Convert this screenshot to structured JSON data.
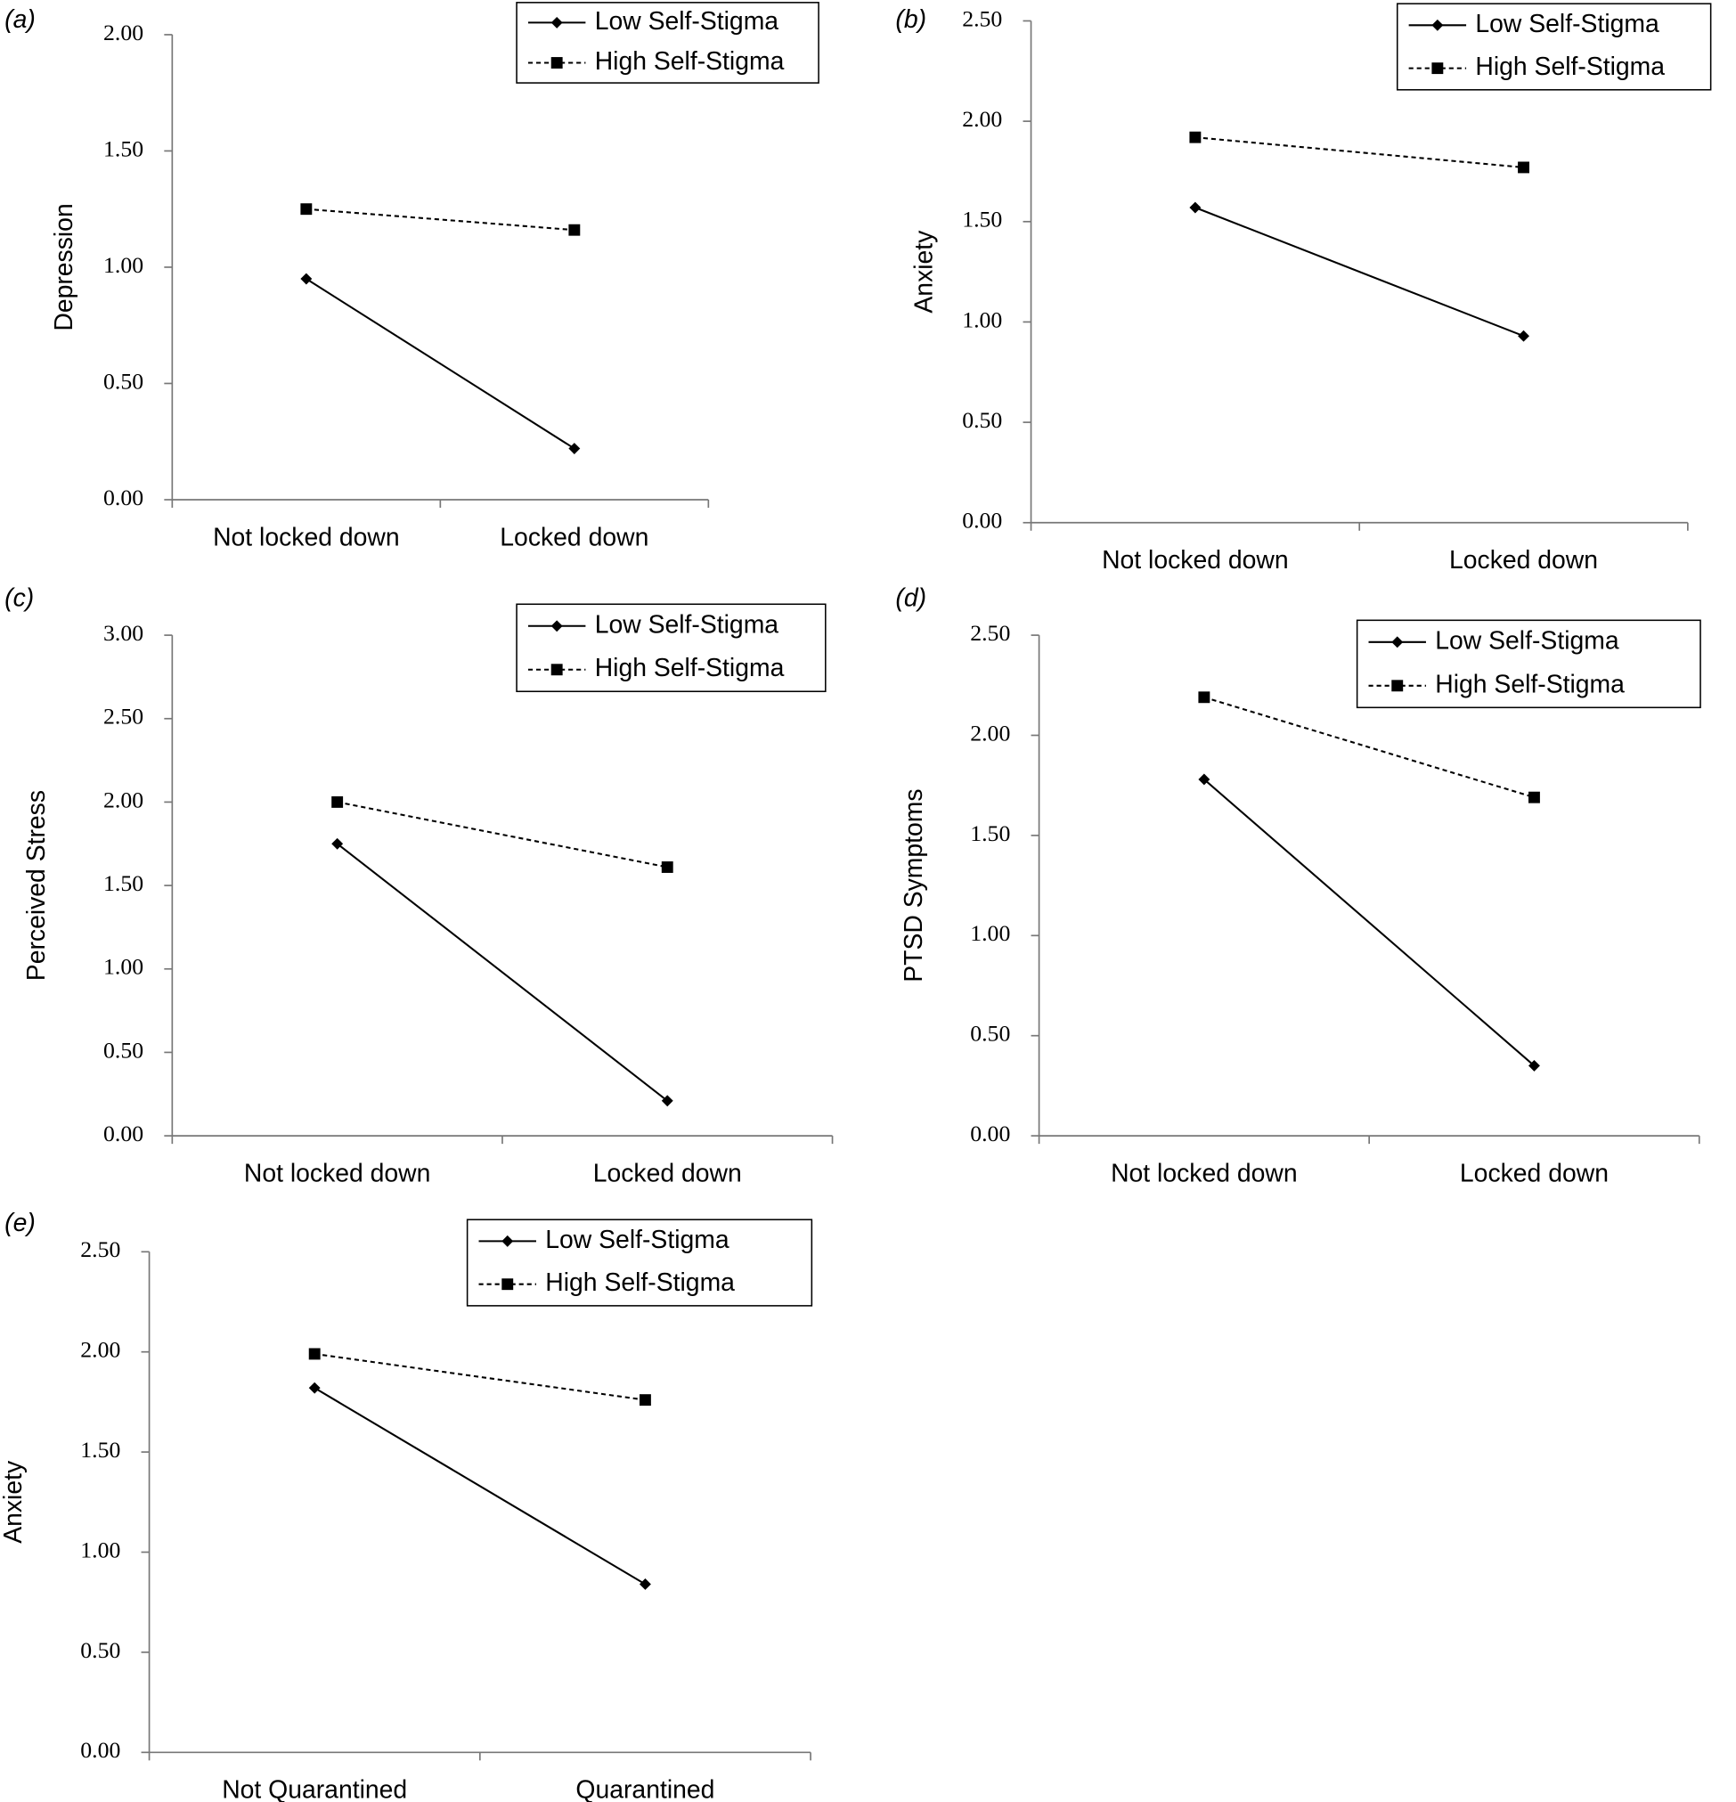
{
  "chart_data": [
    {
      "type": "line",
      "panel": "(a)",
      "y_label": "Depression",
      "categories": [
        "Not locked down",
        "Locked down"
      ],
      "series": [
        {
          "name": "Low Self-Stigma",
          "color": "#000000",
          "line_style": "solid",
          "marker": "diamond",
          "values": [
            0.95,
            0.22
          ]
        },
        {
          "name": "High Self-Stigma",
          "color": "#000000",
          "line_style": "dashed",
          "marker": "square",
          "values": [
            1.25,
            1.16
          ]
        }
      ],
      "ylim": [
        0,
        2
      ],
      "yticks": [
        {
          "value": 0,
          "label": "0.00"
        },
        {
          "value": 0.5,
          "label": "0.50"
        },
        {
          "value": 1,
          "label": "1.00"
        },
        {
          "value": 1.5,
          "label": "1.50"
        },
        {
          "value": 2,
          "label": "2.00"
        }
      ],
      "legend": "upper right",
      "grid": false
    },
    {
      "type": "line",
      "panel": "(b)",
      "y_label": "Anxiety",
      "categories": [
        "Not locked down",
        "Locked down"
      ],
      "series": [
        {
          "name": "Low Self-Stigma",
          "color": "#000000",
          "line_style": "solid",
          "marker": "diamond",
          "values": [
            1.57,
            0.93
          ]
        },
        {
          "name": "High Self-Stigma",
          "color": "#000000",
          "line_style": "dashed",
          "marker": "square",
          "values": [
            1.92,
            1.77
          ]
        }
      ],
      "ylim": [
        0,
        2.5
      ],
      "yticks": [
        {
          "value": 0,
          "label": "0.00"
        },
        {
          "value": 0.5,
          "label": "0.50"
        },
        {
          "value": 1,
          "label": "1.00"
        },
        {
          "value": 1.5,
          "label": "1.50"
        },
        {
          "value": 2,
          "label": "2.00"
        },
        {
          "value": 2.5,
          "label": "2.50"
        }
      ],
      "legend": "upper right",
      "grid": false
    },
    {
      "type": "line",
      "panel": "(c)",
      "y_label": "Perceived Stress",
      "categories": [
        "Not locked down",
        "Locked down"
      ],
      "series": [
        {
          "name": "Low Self-Stigma",
          "color": "#000000",
          "line_style": "solid",
          "marker": "diamond",
          "values": [
            1.75,
            0.21
          ]
        },
        {
          "name": "High Self-Stigma",
          "color": "#000000",
          "line_style": "dashed",
          "marker": "square",
          "values": [
            2.0,
            1.61
          ]
        }
      ],
      "ylim": [
        0,
        3
      ],
      "yticks": [
        {
          "value": 0,
          "label": "0.00"
        },
        {
          "value": 0.5,
          "label": "0.50"
        },
        {
          "value": 1,
          "label": "1.00"
        },
        {
          "value": 1.5,
          "label": "1.50"
        },
        {
          "value": 2,
          "label": "2.00"
        },
        {
          "value": 2.5,
          "label": "2.50"
        },
        {
          "value": 3,
          "label": "3.00"
        }
      ],
      "legend": "upper right",
      "grid": false
    },
    {
      "type": "line",
      "panel": "(d)",
      "y_label": "PTSD Symptoms",
      "categories": [
        "Not locked down",
        "Locked down"
      ],
      "series": [
        {
          "name": "Low Self-Stigma",
          "color": "#000000",
          "line_style": "solid",
          "marker": "diamond",
          "values": [
            1.78,
            0.35
          ]
        },
        {
          "name": "High Self-Stigma",
          "color": "#000000",
          "line_style": "dashed",
          "marker": "square",
          "values": [
            2.19,
            1.69
          ]
        }
      ],
      "ylim": [
        0,
        2.5
      ],
      "yticks": [
        {
          "value": 0,
          "label": "0.00"
        },
        {
          "value": 0.5,
          "label": "0.50"
        },
        {
          "value": 1,
          "label": "1.00"
        },
        {
          "value": 1.5,
          "label": "1.50"
        },
        {
          "value": 2,
          "label": "2.00"
        },
        {
          "value": 2.5,
          "label": "2.50"
        }
      ],
      "legend": "upper right",
      "grid": false
    },
    {
      "type": "line",
      "panel": "(e)",
      "y_label": "Anxiety",
      "categories": [
        "Not Quarantined",
        "Quarantined"
      ],
      "series": [
        {
          "name": "Low Self-Stigma",
          "color": "#000000",
          "line_style": "solid",
          "marker": "diamond",
          "values": [
            1.82,
            0.84
          ]
        },
        {
          "name": "High Self-Stigma",
          "color": "#000000",
          "line_style": "dashed",
          "marker": "square",
          "values": [
            1.99,
            1.76
          ]
        }
      ],
      "ylim": [
        0,
        2.5
      ],
      "yticks": [
        {
          "value": 0,
          "label": "0.00"
        },
        {
          "value": 0.5,
          "label": "0.50"
        },
        {
          "value": 1,
          "label": "1.00"
        },
        {
          "value": 1.5,
          "label": "1.50"
        },
        {
          "value": 2,
          "label": "2.00"
        },
        {
          "value": 2.5,
          "label": "2.50"
        }
      ],
      "legend": "upper right",
      "grid": false
    }
  ]
}
